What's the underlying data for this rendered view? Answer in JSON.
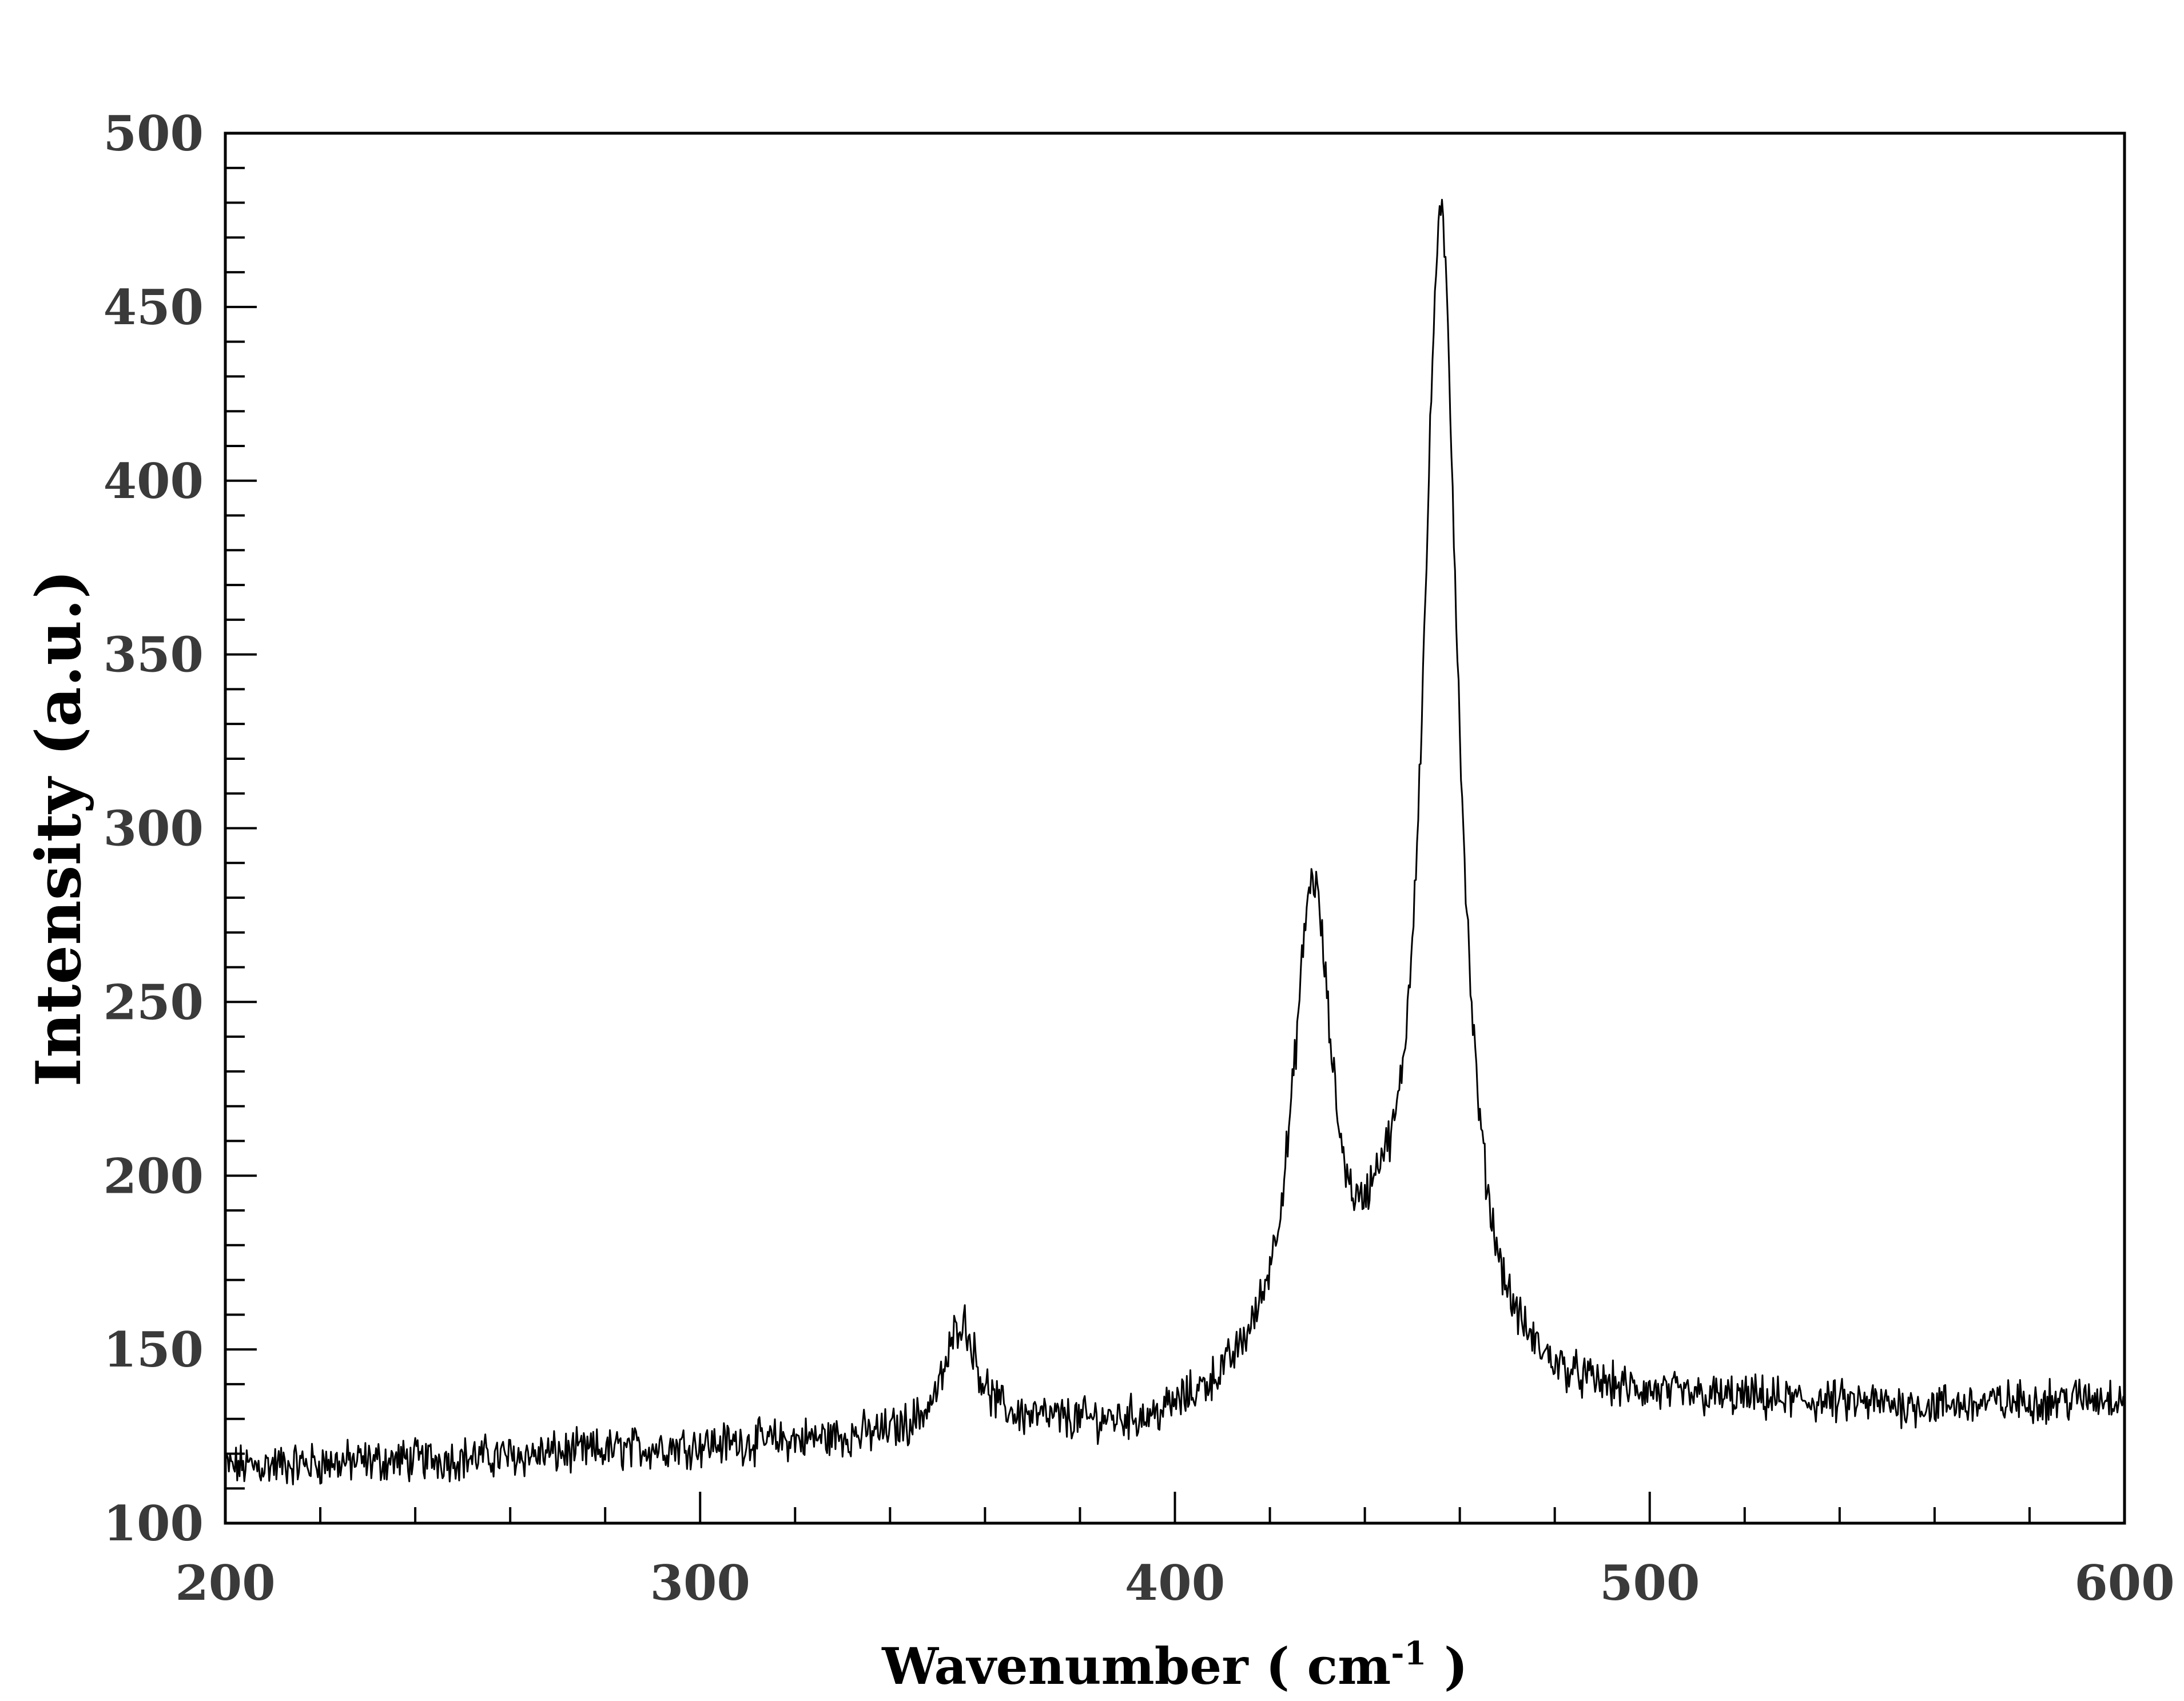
{
  "chart_data": {
    "type": "line",
    "xlabel": "Wavenumber ( cm",
    "xlabel_sup": "-1",
    "xlabel_end": " )",
    "ylabel": "Intensity (a.u.)",
    "xlim": [
      200,
      600
    ],
    "ylim": [
      100,
      500
    ],
    "x_ticks": [
      200,
      300,
      400,
      500,
      600
    ],
    "y_ticks": [
      100,
      150,
      200,
      250,
      300,
      350,
      400,
      450,
      500
    ],
    "x_minor_step": 20,
    "y_minor_step": 10,
    "grid": false,
    "line_color": "#000000",
    "baseline": [
      [
        200,
        116
      ],
      [
        260,
        119
      ],
      [
        300,
        122
      ],
      [
        340,
        124
      ],
      [
        370,
        127
      ],
      [
        395,
        126
      ],
      [
        420,
        136
      ],
      [
        470,
        133
      ],
      [
        520,
        134
      ],
      [
        560,
        133
      ],
      [
        600,
        136
      ]
    ],
    "peaks": [
      {
        "x": 355,
        "y": 157,
        "width": 4.0
      },
      {
        "x": 429,
        "y": 275,
        "width": 5.0
      },
      {
        "x": 443,
        "y": 152,
        "width": 3.5
      },
      {
        "x": 456,
        "y": 470,
        "width": 4.6
      }
    ],
    "noise_amplitude": 5,
    "series": [
      {
        "x": 200,
        "y": 116
      },
      {
        "x": 250,
        "y": 117
      },
      {
        "x": 300,
        "y": 122
      },
      {
        "x": 345,
        "y": 126
      },
      {
        "x": 355,
        "y": 157
      },
      {
        "x": 365,
        "y": 131
      },
      {
        "x": 395,
        "y": 126
      },
      {
        "x": 415,
        "y": 140
      },
      {
        "x": 429,
        "y": 275
      },
      {
        "x": 443,
        "y": 152
      },
      {
        "x": 456,
        "y": 470
      },
      {
        "x": 470,
        "y": 136
      },
      {
        "x": 500,
        "y": 133
      },
      {
        "x": 550,
        "y": 134
      },
      {
        "x": 600,
        "y": 136
      }
    ]
  }
}
